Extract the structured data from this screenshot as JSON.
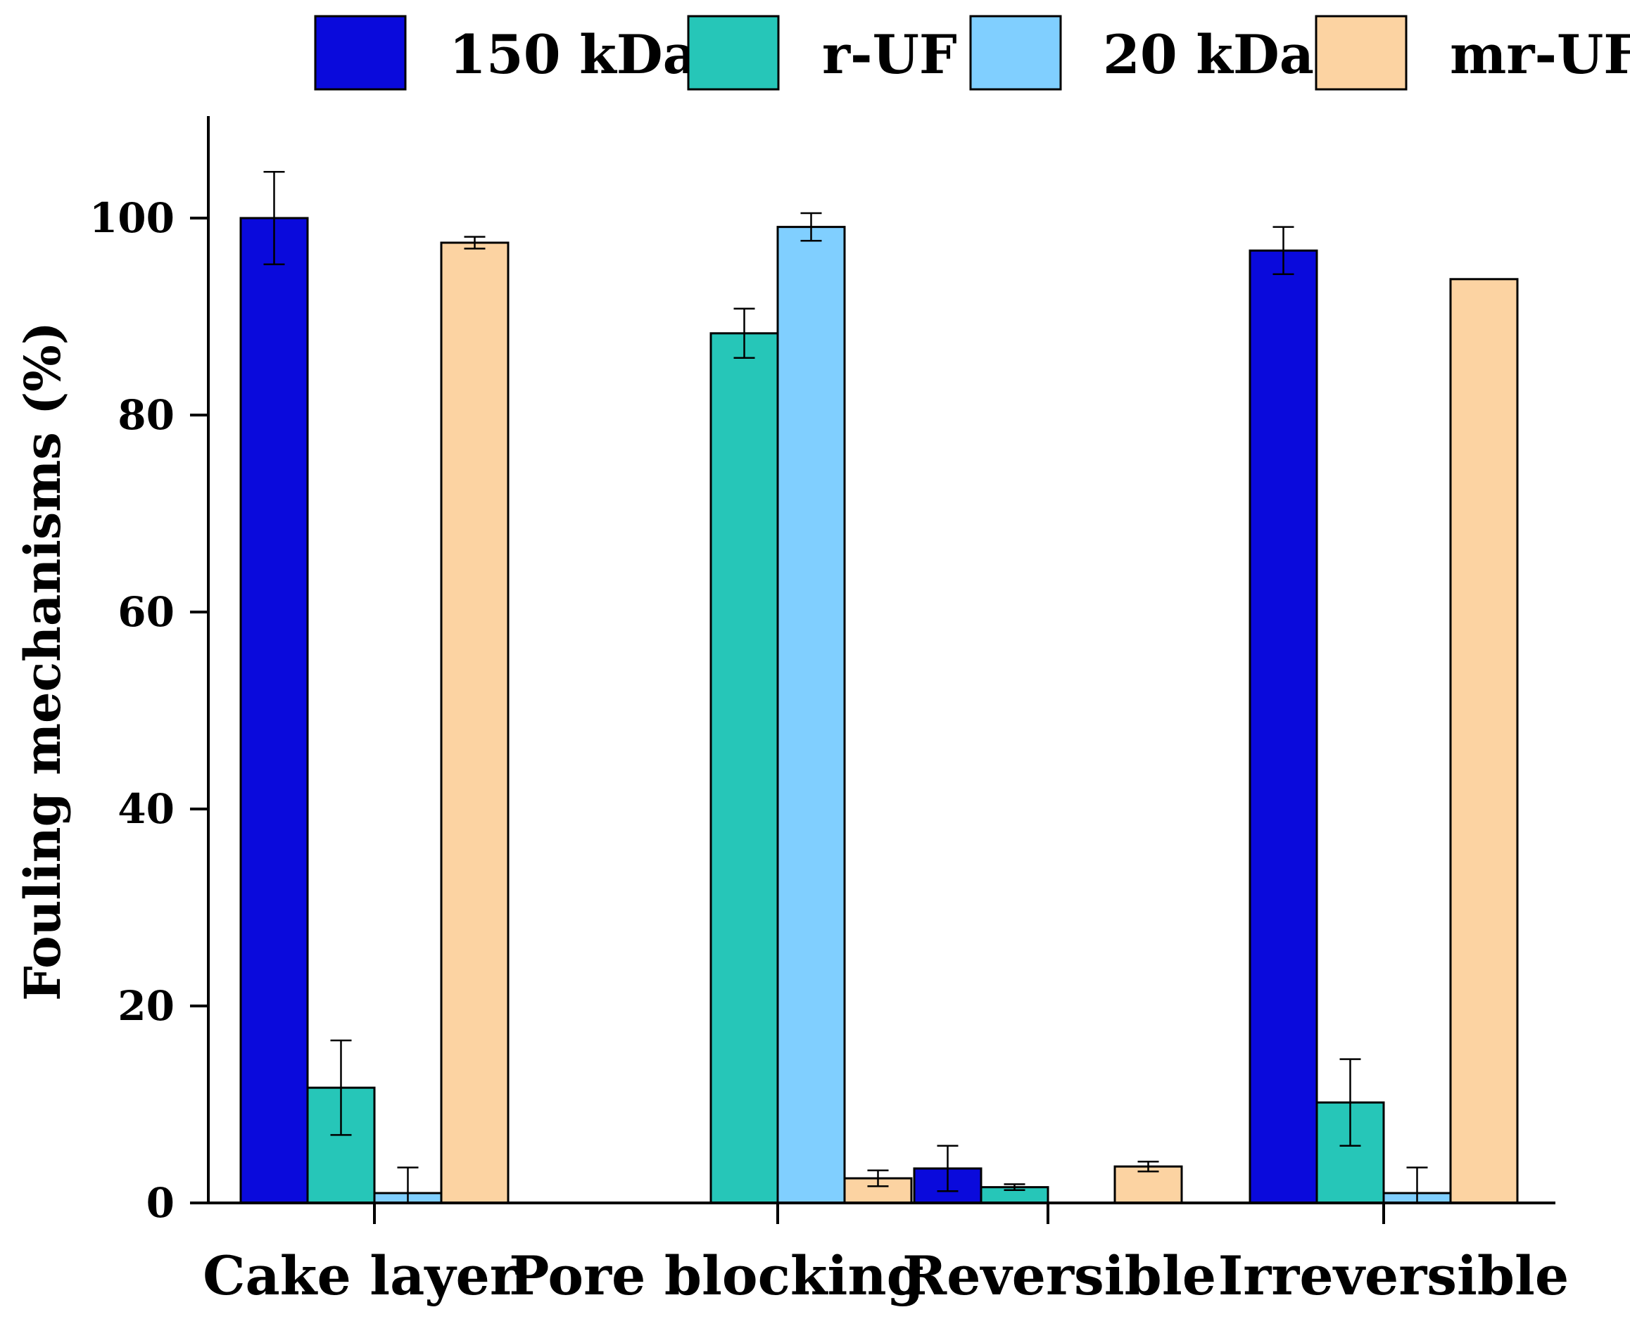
{
  "chart_data": {
    "type": "bar",
    "title": "",
    "xlabel": "",
    "ylabel": "Fouling mechanisms (%)",
    "ylim": [
      0,
      110
    ],
    "yticks": [
      0,
      20,
      40,
      60,
      80,
      100
    ],
    "categories": [
      "Cake layer",
      "Pore blocking",
      "Reversible",
      "Irreversible"
    ],
    "series": [
      {
        "name": "150 kDa",
        "color": "#0A0ADC",
        "values": [
          100,
          0,
          3.5,
          96.7
        ],
        "errors": [
          4.7,
          0,
          2.3,
          2.4
        ]
      },
      {
        "name": "r-UF",
        "color": "#26C6B8",
        "values": [
          11.7,
          88.3,
          1.6,
          10.2
        ],
        "errors": [
          4.8,
          2.5,
          0.3,
          4.4
        ]
      },
      {
        "name": "20 kDa",
        "color": "#80CFFF",
        "values": [
          1.0,
          99.1,
          0,
          1.0
        ],
        "errors": [
          2.6,
          1.4,
          0,
          2.6
        ]
      },
      {
        "name": "mr-UF",
        "color": "#FCD3A2",
        "values": [
          97.5,
          2.5,
          3.7,
          93.8
        ],
        "errors": [
          0.6,
          0.8,
          0.5,
          0
        ]
      }
    ],
    "legend": "top",
    "grid": false
  }
}
